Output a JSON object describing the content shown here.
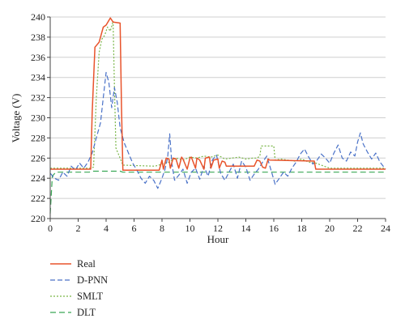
{
  "chart_data": {
    "type": "line",
    "title": "",
    "xlabel": "Hour",
    "ylabel": "Voltage (V)",
    "xlim": [
      0,
      24
    ],
    "ylim": [
      220,
      240
    ],
    "xticks": [
      "0",
      "2",
      "4",
      "6",
      "8",
      "10",
      "12",
      "14",
      "16",
      "18",
      "20",
      "22",
      "24"
    ],
    "yticks": [
      "220",
      "222",
      "224",
      "226",
      "228",
      "230",
      "232",
      "234",
      "236",
      "238",
      "240"
    ],
    "grid": "horizontal",
    "legend_position": "bottom-left",
    "series": [
      {
        "name": "Real",
        "color": "#e8532b",
        "dash": "solid",
        "x": [
          0,
          2.9,
          3.0,
          3.2,
          3.5,
          3.8,
          4.0,
          4.3,
          4.5,
          5.0,
          5.1,
          5.2,
          7.8,
          8.0,
          8.1,
          8.3,
          8.5,
          8.6,
          8.8,
          9.0,
          9.2,
          9.4,
          9.5,
          9.8,
          10.0,
          10.1,
          10.4,
          10.5,
          10.7,
          11.0,
          11.1,
          11.4,
          11.5,
          11.7,
          12.0,
          12.1,
          12.3,
          12.5,
          12.6,
          14.6,
          14.8,
          15.0,
          15.2,
          15.4,
          15.6,
          15.7,
          18.9,
          19.0,
          24
        ],
        "y": [
          224.9,
          224.9,
          230.5,
          237.0,
          237.5,
          239.0,
          239.2,
          239.9,
          239.5,
          239.4,
          231.0,
          224.8,
          224.8,
          225.8,
          224.9,
          226.0,
          225.9,
          225.0,
          226.0,
          225.9,
          225.0,
          226.1,
          225.9,
          224.9,
          226.0,
          226.1,
          225.0,
          226.0,
          225.8,
          224.9,
          226.0,
          226.1,
          225.0,
          225.8,
          225.9,
          225.0,
          225.7,
          225.6,
          225.2,
          225.2,
          225.8,
          225.7,
          225.1,
          225.0,
          225.9,
          225.8,
          225.7,
          224.9,
          224.9
        ]
      },
      {
        "name": "D-PNN",
        "color": "#4a72c8",
        "dash": "6,3",
        "x": [
          0,
          0.3,
          0.6,
          0.9,
          1.2,
          1.5,
          1.8,
          2.1,
          2.4,
          2.7,
          3.0,
          3.3,
          3.6,
          3.8,
          4.0,
          4.2,
          4.4,
          4.6,
          4.8,
          5.0,
          5.3,
          5.6,
          5.9,
          6.2,
          6.5,
          6.8,
          7.1,
          7.4,
          7.7,
          8.0,
          8.2,
          8.4,
          8.55,
          8.7,
          8.9,
          9.2,
          9.5,
          9.8,
          10.1,
          10.4,
          10.7,
          11.0,
          11.3,
          11.6,
          11.9,
          12.2,
          12.5,
          12.8,
          13.1,
          13.4,
          13.7,
          14.0,
          14.3,
          14.6,
          14.9,
          15.2,
          15.5,
          15.8,
          16.1,
          16.4,
          16.7,
          17.0,
          17.3,
          17.6,
          17.9,
          18.2,
          18.5,
          18.8,
          19.1,
          19.4,
          19.7,
          20.0,
          20.3,
          20.6,
          20.9,
          21.2,
          21.5,
          21.8,
          22.0,
          22.2,
          22.4,
          22.7,
          23.0,
          23.3,
          23.6,
          24.0
        ],
        "y": [
          224.5,
          224.0,
          223.8,
          224.6,
          224.2,
          225.2,
          224.8,
          225.5,
          225.0,
          225.6,
          226.5,
          228.0,
          229.5,
          232.0,
          234.5,
          233.5,
          231.0,
          233.0,
          231.5,
          229.0,
          227.5,
          226.5,
          225.5,
          224.8,
          224.0,
          223.5,
          224.2,
          223.8,
          223.0,
          224.0,
          224.8,
          226.0,
          228.4,
          225.5,
          223.8,
          224.3,
          224.9,
          223.5,
          224.6,
          225.0,
          223.9,
          225.2,
          224.2,
          225.8,
          226.3,
          224.5,
          223.8,
          224.6,
          225.4,
          224.0,
          225.7,
          225.1,
          223.8,
          224.4,
          224.9,
          225.6,
          226.2,
          224.8,
          223.4,
          224.0,
          224.6,
          224.2,
          225.0,
          225.6,
          226.4,
          226.9,
          226.1,
          225.4,
          225.8,
          226.4,
          226.0,
          225.5,
          226.5,
          227.3,
          226.0,
          225.7,
          226.6,
          226.2,
          227.6,
          228.5,
          227.4,
          226.6,
          225.9,
          226.5,
          225.6,
          224.9
        ]
      },
      {
        "name": "SMLT",
        "color": "#7ab648",
        "dash": "2,2",
        "x": [
          0,
          2.9,
          3.1,
          3.3,
          3.5,
          3.7,
          3.9,
          4.1,
          4.3,
          4.5,
          4.6,
          4.7,
          5.0,
          5.2,
          7.5,
          8.0,
          8.5,
          9.0,
          9.5,
          10.0,
          10.5,
          11.0,
          11.5,
          12.0,
          12.5,
          13.0,
          13.5,
          14.0,
          14.5,
          14.8,
          15.0,
          15.1,
          16.0,
          16.1,
          16.5,
          17.0,
          17.5,
          18.0,
          18.5,
          19.0,
          20.0,
          24
        ],
        "y": [
          225.0,
          225.0,
          225.1,
          232.0,
          236.5,
          237.8,
          238.2,
          239.0,
          238.6,
          239.6,
          233.0,
          227.0,
          226.0,
          225.3,
          225.2,
          225.4,
          225.6,
          226.0,
          225.8,
          226.1,
          226.0,
          226.2,
          226.1,
          226.3,
          225.9,
          226.0,
          226.1,
          225.9,
          226.0,
          226.0,
          226.2,
          227.2,
          227.2,
          225.8,
          225.9,
          225.8,
          225.7,
          225.9,
          225.6,
          225.5,
          225.0,
          225.0
        ]
      },
      {
        "name": "DLT",
        "color": "#3aa856",
        "dash": "7,4",
        "x": [
          0,
          0.15,
          0.4,
          2.8,
          3.0,
          5.0,
          5.2,
          24
        ],
        "y": [
          220.5,
          224.2,
          224.6,
          224.6,
          224.7,
          224.7,
          224.6,
          224.6
        ]
      }
    ]
  }
}
